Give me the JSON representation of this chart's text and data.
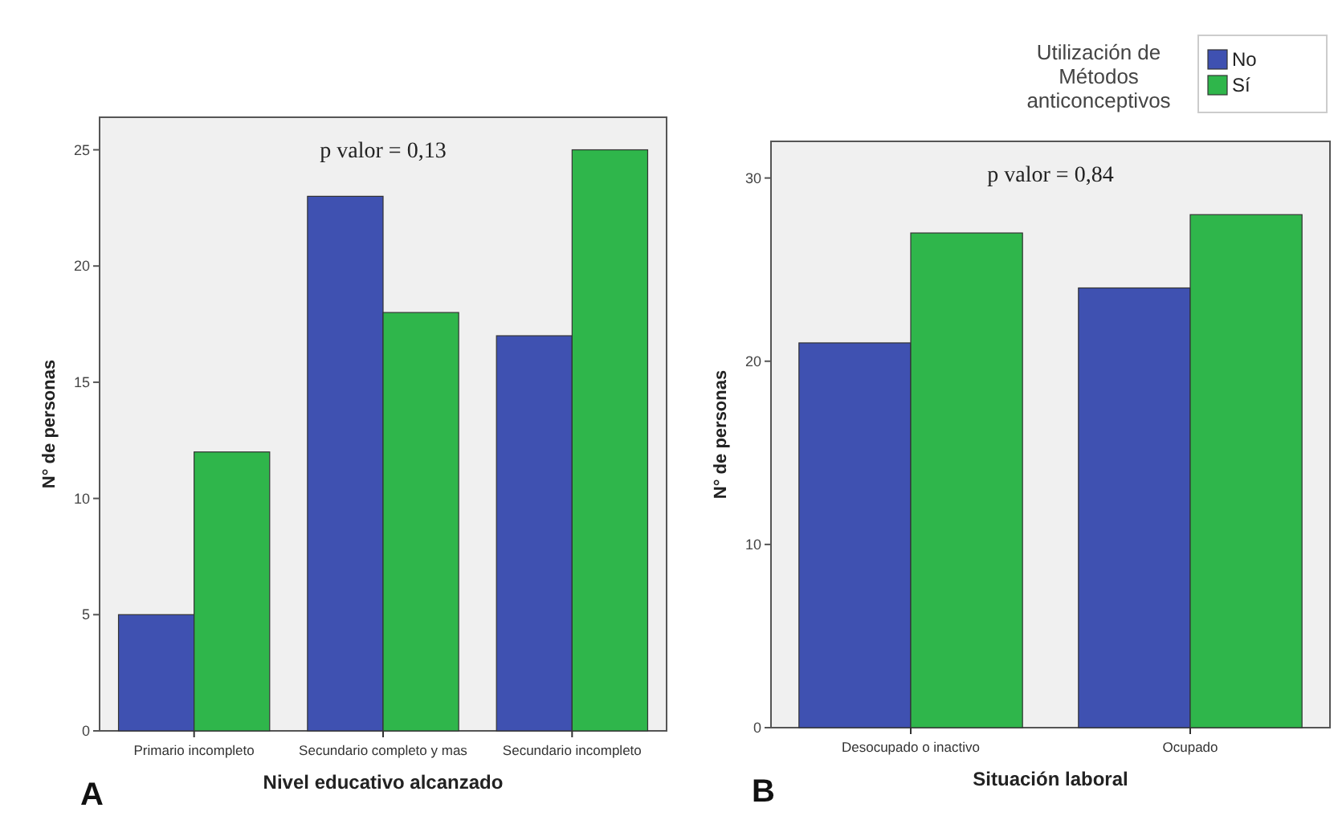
{
  "chart_data": [
    {
      "type": "bar",
      "categories": [
        "Primario incompleto",
        "Secundario completo y mas",
        "Secundario incompleto"
      ],
      "xlabel": "Nivel educativo alcanzado",
      "ylabel": "N° de personas",
      "ylim": [
        0,
        26.4
      ],
      "yticks": [
        0,
        5,
        10,
        15,
        20,
        25
      ],
      "annotations": [
        "p valor = 0,13",
        "A"
      ],
      "series": [
        {
          "color": "#3f51b1",
          "values": [
            5,
            23,
            17
          ]
        },
        {
          "color": "#2fb64b",
          "values": [
            12,
            18,
            25
          ]
        }
      ]
    },
    {
      "type": "bar",
      "categories": [
        "Desocupado o inactivo",
        "Ocupado"
      ],
      "xlabel": "Situación laboral",
      "ylabel": "N° de personas",
      "ylim": [
        0,
        32
      ],
      "yticks": [
        0,
        10,
        20,
        30
      ],
      "annotations": [
        "p valor = 0,84",
        "B"
      ],
      "legend": "top right",
      "legend_title": "Utilización de Métodos anticonceptivos",
      "series": [
        {
          "name": "No",
          "color": "#3f51b1",
          "values": [
            21,
            24
          ]
        },
        {
          "name": "Sí",
          "color": "#2fb64b",
          "values": [
            27,
            28
          ]
        }
      ]
    }
  ]
}
